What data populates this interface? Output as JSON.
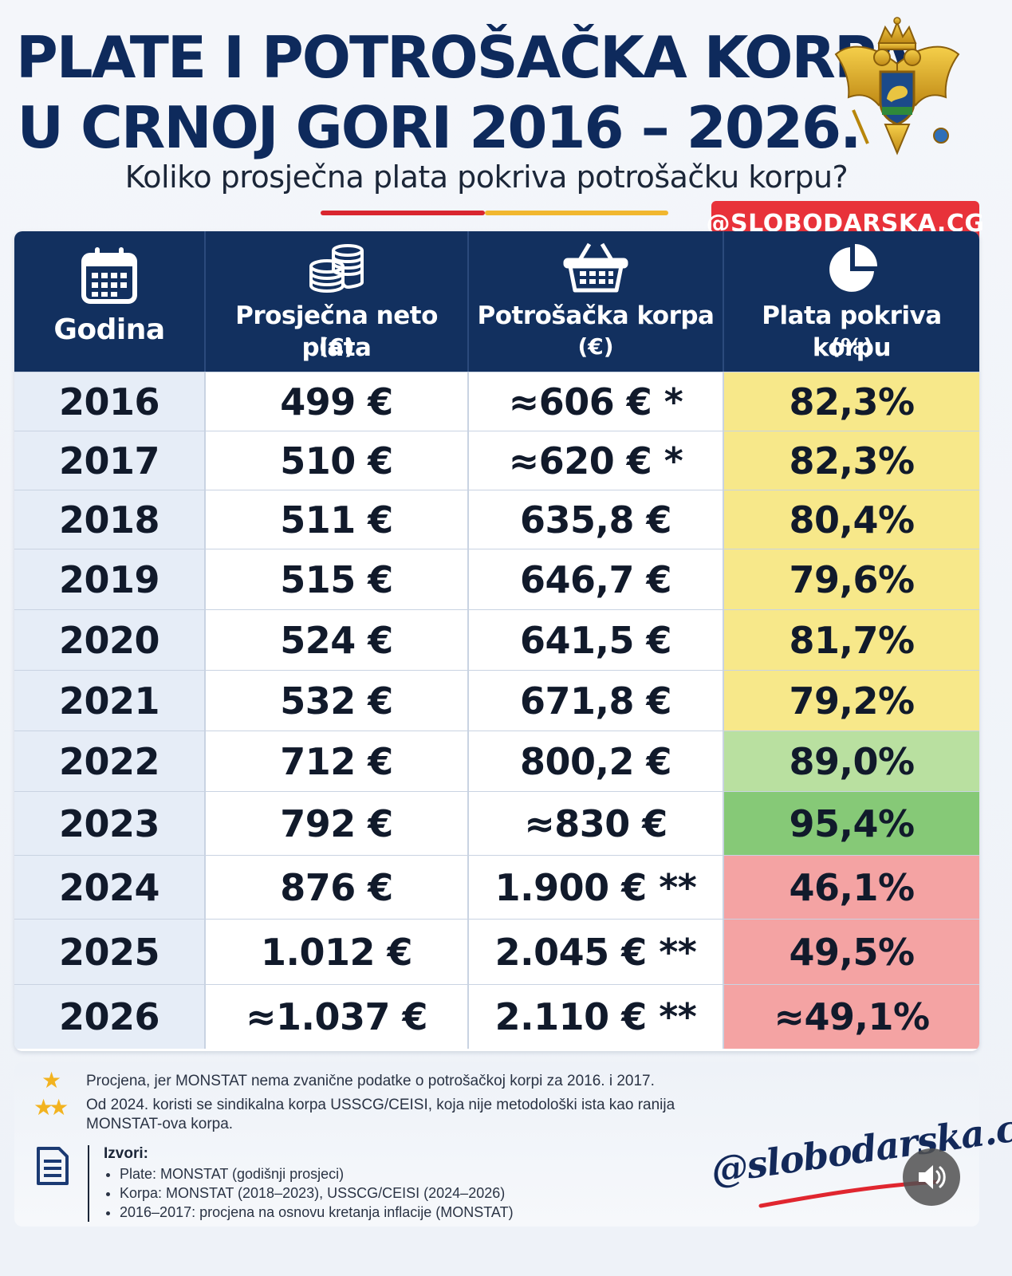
{
  "header": {
    "title_line1": "PLATE I POTROŠAČKA KORPA",
    "title_line2": "U CRNOJ GORI 2016 – 2026.",
    "subtitle": "Koliko prosječna plata pokriva potrošačku korpu?",
    "handle_badge": "@SLOBODARSKA.CG"
  },
  "chart_data": {
    "type": "table",
    "columns": [
      {
        "label": "Godina",
        "unit": "",
        "icon": "calendar-icon"
      },
      {
        "label": "Prosječna neto plata",
        "unit": "(€)",
        "icon": "coins-icon"
      },
      {
        "label": "Potrošačka korpa",
        "unit": "(€)",
        "icon": "basket-icon"
      },
      {
        "label": "Plata pokriva korpu",
        "unit": "(%)",
        "icon": "pie-chart-icon"
      }
    ],
    "rows": [
      {
        "year": "2016",
        "salary": "499 €",
        "basket": "≈606 € *",
        "coverage": "82,3%",
        "salary_value": 499,
        "basket_value": 606,
        "coverage_value": 82.3,
        "color": "#f7e88a"
      },
      {
        "year": "2017",
        "salary": "510 €",
        "basket": "≈620 € *",
        "coverage": "82,3%",
        "salary_value": 510,
        "basket_value": 620,
        "coverage_value": 82.3,
        "color": "#f7e88a"
      },
      {
        "year": "2018",
        "salary": "511 €",
        "basket": "635,8 €",
        "coverage": "80,4%",
        "salary_value": 511,
        "basket_value": 635.8,
        "coverage_value": 80.4,
        "color": "#f7e88a"
      },
      {
        "year": "2019",
        "salary": "515 €",
        "basket": "646,7 €",
        "coverage": "79,6%",
        "salary_value": 515,
        "basket_value": 646.7,
        "coverage_value": 79.6,
        "color": "#f7e88a"
      },
      {
        "year": "2020",
        "salary": "524 €",
        "basket": "641,5 €",
        "coverage": "81,7%",
        "salary_value": 524,
        "basket_value": 641.5,
        "coverage_value": 81.7,
        "color": "#f7e88a"
      },
      {
        "year": "2021",
        "salary": "532 €",
        "basket": "671,8 €",
        "coverage": "79,2%",
        "salary_value": 532,
        "basket_value": 671.8,
        "coverage_value": 79.2,
        "color": "#f7e88a"
      },
      {
        "year": "2022",
        "salary": "712 €",
        "basket": "800,2 €",
        "coverage": "89,0%",
        "salary_value": 712,
        "basket_value": 800.2,
        "coverage_value": 89.0,
        "color": "#b9e0a0"
      },
      {
        "year": "2023",
        "salary": "792 €",
        "basket": "≈830 €",
        "coverage": "95,4%",
        "salary_value": 792,
        "basket_value": 830,
        "coverage_value": 95.4,
        "color": "#86c977"
      },
      {
        "year": "2024",
        "salary": "876 €",
        "basket": "1.900 € **",
        "coverage": "46,1%",
        "salary_value": 876,
        "basket_value": 1900,
        "coverage_value": 46.1,
        "color": "#f4a3a3"
      },
      {
        "year": "2025",
        "salary": "1.012 €",
        "basket": "2.045 € **",
        "coverage": "49,5%",
        "salary_value": 1012,
        "basket_value": 2045,
        "coverage_value": 49.5,
        "color": "#f4a3a3"
      },
      {
        "year": "2026",
        "salary": "≈1.037 €",
        "basket": "2.110 € **",
        "coverage": "≈49,1%",
        "salary_value": 1037,
        "basket_value": 2110,
        "coverage_value": 49.1,
        "color": "#f4a3a3"
      }
    ]
  },
  "notes": {
    "note1": "Procjena, jer MONSTAT nema zvanične podatke o potrošačkoj korpi za 2016. i 2017.",
    "note2_line1": "Od 2024. koristi se sindikalna korpa USSCG/CEISI, koja nije metodološki ista kao ranija",
    "note2_line2": "MONSTAT-ova korpa.",
    "sources_title": "Izvori:",
    "sources": [
      "Plate: MONSTAT (godišnji prosjeci)",
      "Korpa: MONSTAT (2018–2023), USSCG/CEISI (2024–2026)",
      "2016–2017: procjena na osnovu kretanja inflacije (MONSTAT)"
    ]
  },
  "signature": "@slobodarska.cg",
  "colors": {
    "navy": "#12305f",
    "title": "#0e2a5c",
    "yellow": "#f7e88a",
    "light_green": "#b9e0a0",
    "green": "#86c977",
    "red": "#f4a3a3",
    "badge": "#e8323a"
  }
}
